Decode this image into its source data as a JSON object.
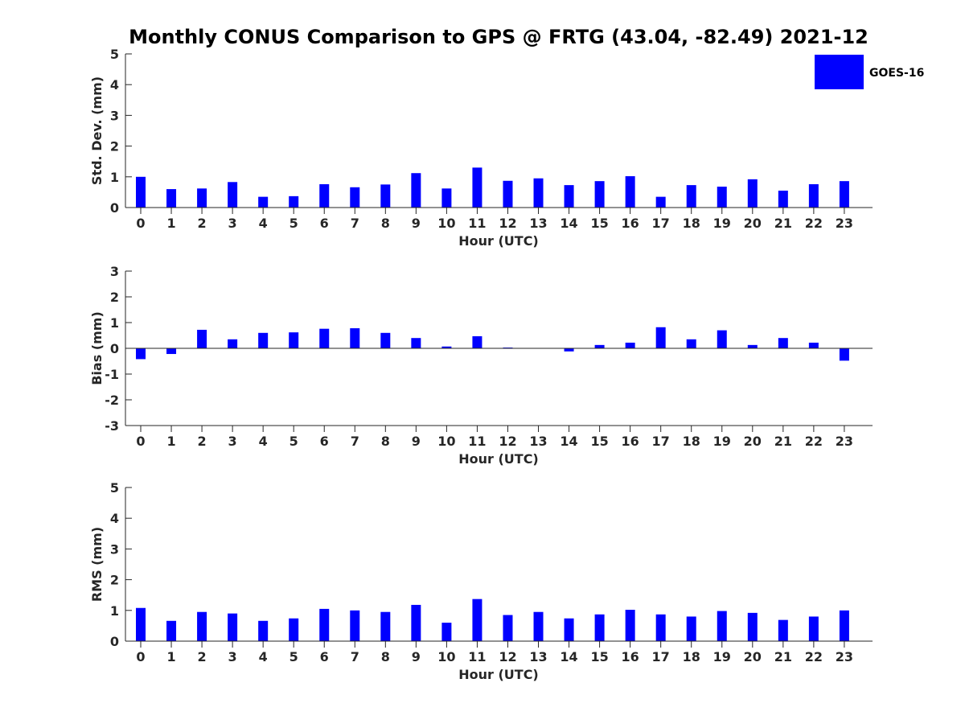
{
  "title": "Monthly CONUS Comparison to GPS @ FRTG (43.04, -82.49) 2021-12",
  "legend": {
    "label": "GOES-16",
    "color": "#0000FF",
    "placement": "top-right"
  },
  "chart_data": [
    {
      "type": "bar",
      "categories": [
        "0",
        "1",
        "2",
        "3",
        "4",
        "5",
        "6",
        "7",
        "8",
        "9",
        "10",
        "11",
        "12",
        "13",
        "14",
        "15",
        "16",
        "17",
        "18",
        "19",
        "20",
        "21",
        "22",
        "23"
      ],
      "series": [
        {
          "name": "GOES-16",
          "values": [
            1.0,
            0.6,
            0.62,
            0.83,
            0.35,
            0.37,
            0.76,
            0.66,
            0.75,
            1.12,
            0.62,
            1.3,
            0.87,
            0.95,
            0.73,
            0.86,
            1.02,
            0.35,
            0.73,
            0.68,
            0.92,
            0.55,
            0.76,
            0.86
          ]
        }
      ],
      "xlabel": "Hour (UTC)",
      "ylabel": "Std. Dev. (mm)",
      "ylim": [
        0,
        5
      ],
      "yticks": [
        0,
        1,
        2,
        3,
        4,
        5
      ],
      "grid": false
    },
    {
      "type": "bar",
      "categories": [
        "0",
        "1",
        "2",
        "3",
        "4",
        "5",
        "6",
        "7",
        "8",
        "9",
        "10",
        "11",
        "12",
        "13",
        "14",
        "15",
        "16",
        "17",
        "18",
        "19",
        "20",
        "21",
        "22",
        "23"
      ],
      "series": [
        {
          "name": "GOES-16",
          "values": [
            -0.42,
            -0.22,
            0.72,
            0.35,
            0.6,
            0.62,
            0.76,
            0.78,
            0.6,
            0.4,
            0.07,
            0.47,
            0.03,
            0.0,
            -0.12,
            0.13,
            0.22,
            0.82,
            0.35,
            0.7,
            0.13,
            0.4,
            0.22,
            -0.48
          ]
        }
      ],
      "xlabel": "Hour (UTC)",
      "ylabel": "Bias (mm)",
      "ylim": [
        -3,
        3
      ],
      "yticks": [
        -3,
        -2,
        -1,
        0,
        1,
        2,
        3
      ],
      "grid": false
    },
    {
      "type": "bar",
      "categories": [
        "0",
        "1",
        "2",
        "3",
        "4",
        "5",
        "6",
        "7",
        "8",
        "9",
        "10",
        "11",
        "12",
        "13",
        "14",
        "15",
        "16",
        "17",
        "18",
        "19",
        "20",
        "21",
        "22",
        "23"
      ],
      "series": [
        {
          "name": "GOES-16",
          "values": [
            1.08,
            0.66,
            0.95,
            0.9,
            0.66,
            0.74,
            1.05,
            1.0,
            0.95,
            1.18,
            0.6,
            1.37,
            0.85,
            0.95,
            0.74,
            0.87,
            1.02,
            0.87,
            0.8,
            0.98,
            0.92,
            0.69,
            0.8,
            1.0
          ]
        }
      ],
      "xlabel": "Hour (UTC)",
      "ylabel": "RMS (mm)",
      "ylim": [
        0,
        5
      ],
      "yticks": [
        0,
        1,
        2,
        3,
        4,
        5
      ],
      "grid": false
    }
  ]
}
